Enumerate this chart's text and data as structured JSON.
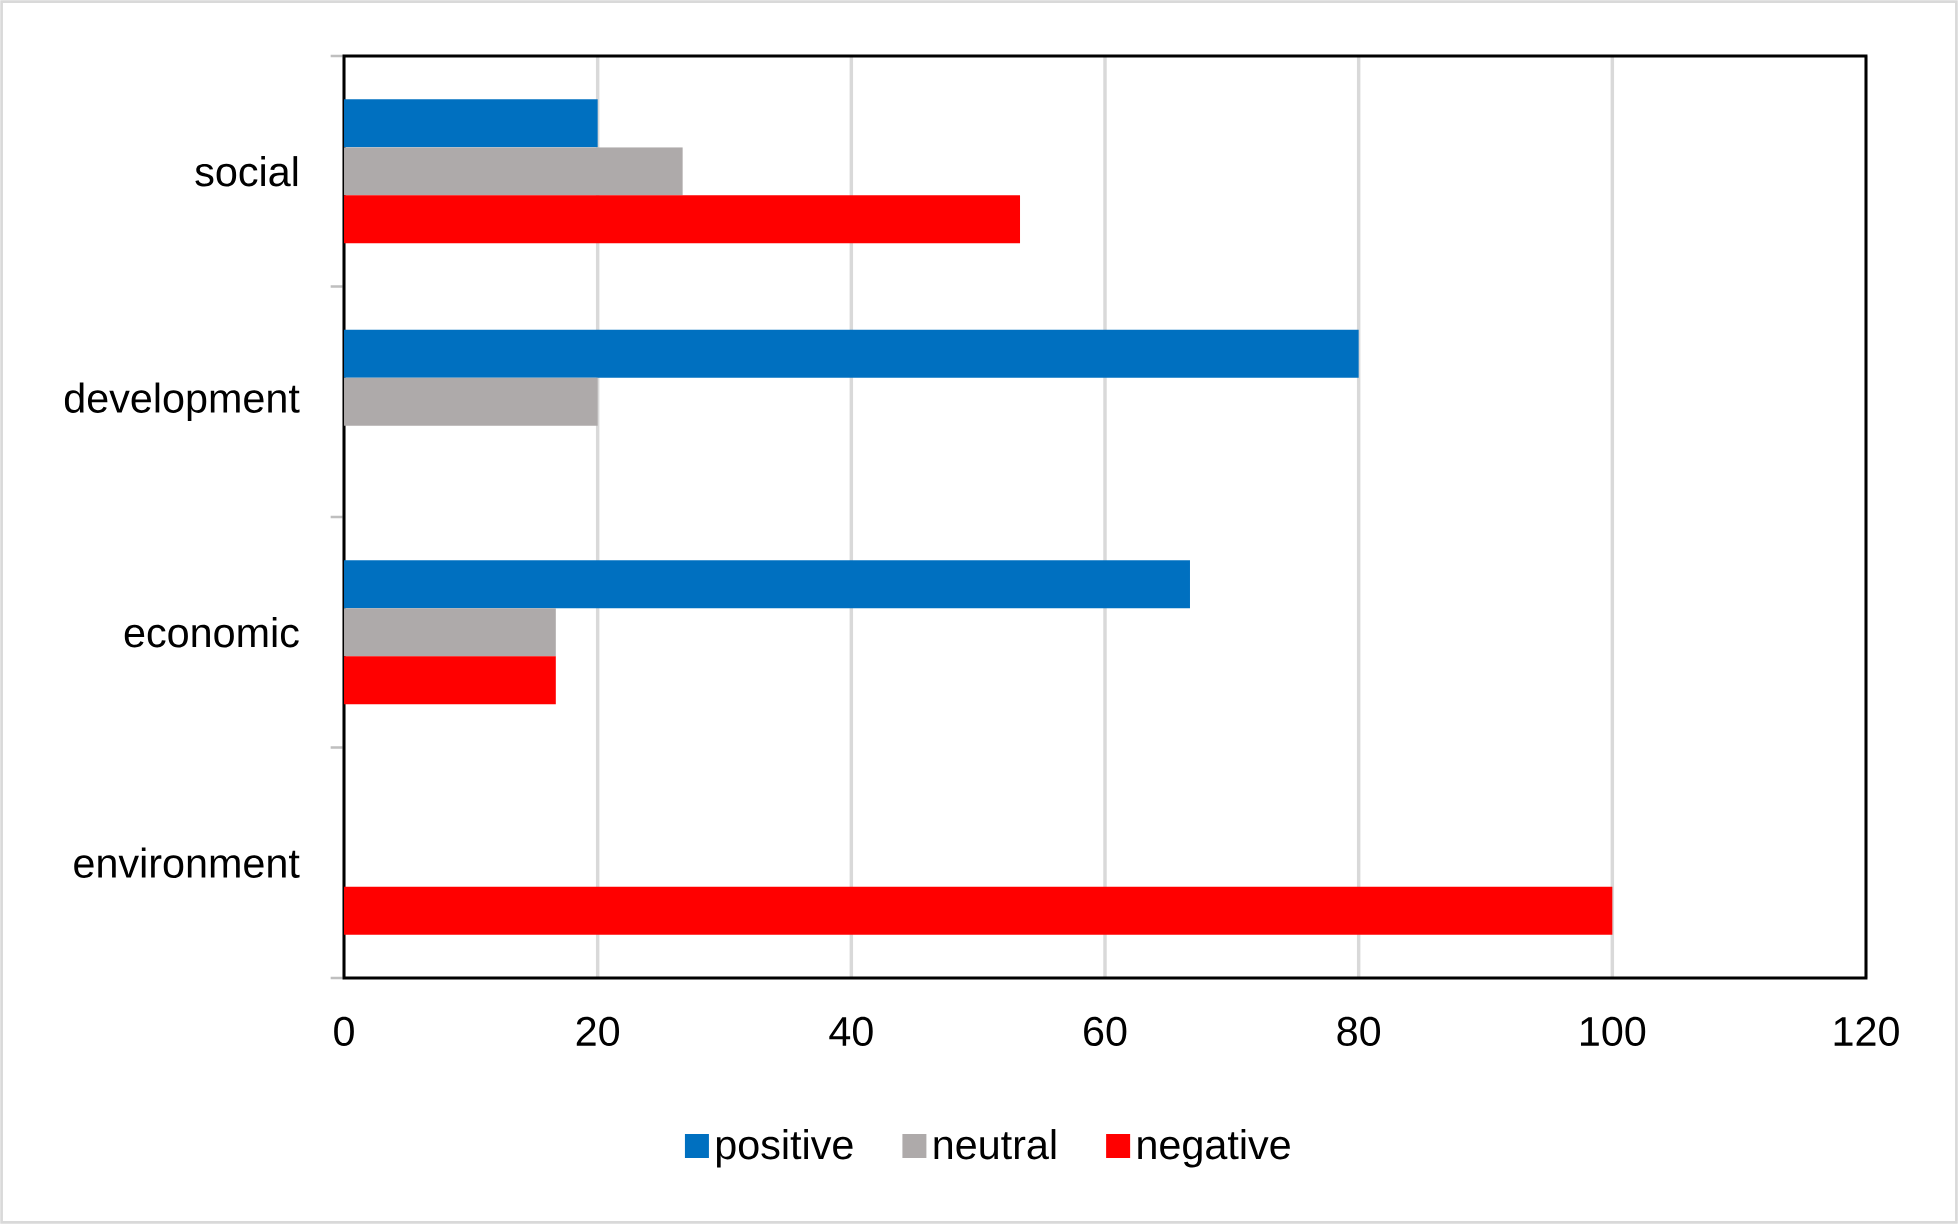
{
  "chart_data": {
    "type": "bar",
    "orientation": "horizontal",
    "categories": [
      "social",
      "development",
      "economic",
      "environment"
    ],
    "series": [
      {
        "name": "positive",
        "color": "#0070c0",
        "values": [
          20,
          80,
          66.7,
          0
        ]
      },
      {
        "name": "neutral",
        "color": "#aeaaaa",
        "values": [
          26.7,
          20,
          16.7,
          0
        ]
      },
      {
        "name": "negative",
        "color": "#ff0000",
        "values": [
          53.3,
          0,
          16.7,
          100
        ]
      }
    ],
    "xlim": [
      0,
      120
    ],
    "xticks": [
      0,
      20,
      40,
      60,
      80,
      100,
      120
    ],
    "grid": "x",
    "legend": "bottom"
  }
}
